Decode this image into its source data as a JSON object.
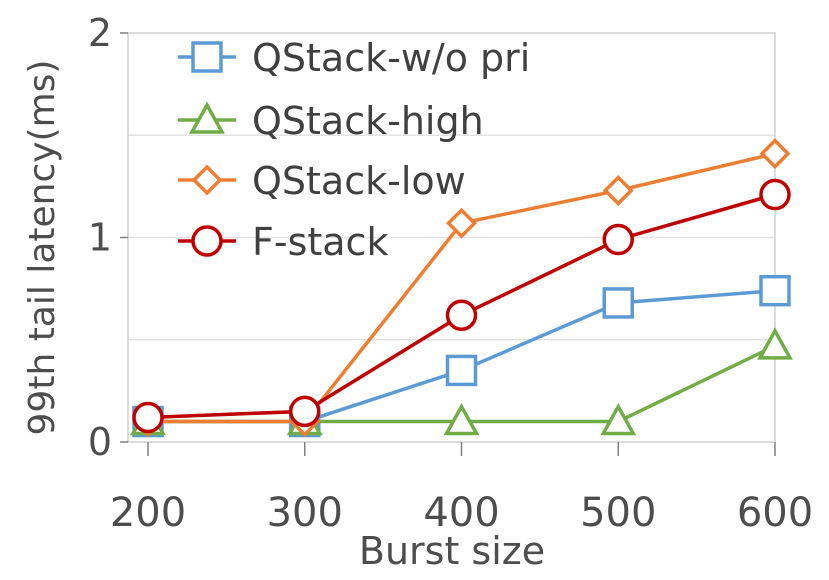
{
  "chart_data": {
    "type": "line",
    "title": "",
    "xlabel": "Burst size",
    "ylabel": "99th tail latency(ms)",
    "x": [
      200,
      300,
      400,
      500,
      600
    ],
    "ylim": [
      0,
      2
    ],
    "yticks": [
      0,
      1,
      2
    ],
    "grid": true,
    "legend_position": "top-left",
    "series": [
      {
        "name": "QStack-w/o pri",
        "marker": "square",
        "color": "#5b9bd5",
        "values": [
          0.1,
          0.1,
          0.35,
          0.68,
          0.74
        ]
      },
      {
        "name": "QStack-high",
        "marker": "triangle",
        "color": "#70ad47",
        "values": [
          0.1,
          0.1,
          0.1,
          0.1,
          0.47
        ]
      },
      {
        "name": "QStack-low",
        "marker": "diamond",
        "color": "#ed7d31",
        "values": [
          0.1,
          0.1,
          1.07,
          1.23,
          1.41
        ]
      },
      {
        "name": "F-stack",
        "marker": "circle",
        "color": "#c00000",
        "values": [
          0.12,
          0.15,
          0.62,
          0.99,
          1.21
        ]
      }
    ]
  }
}
